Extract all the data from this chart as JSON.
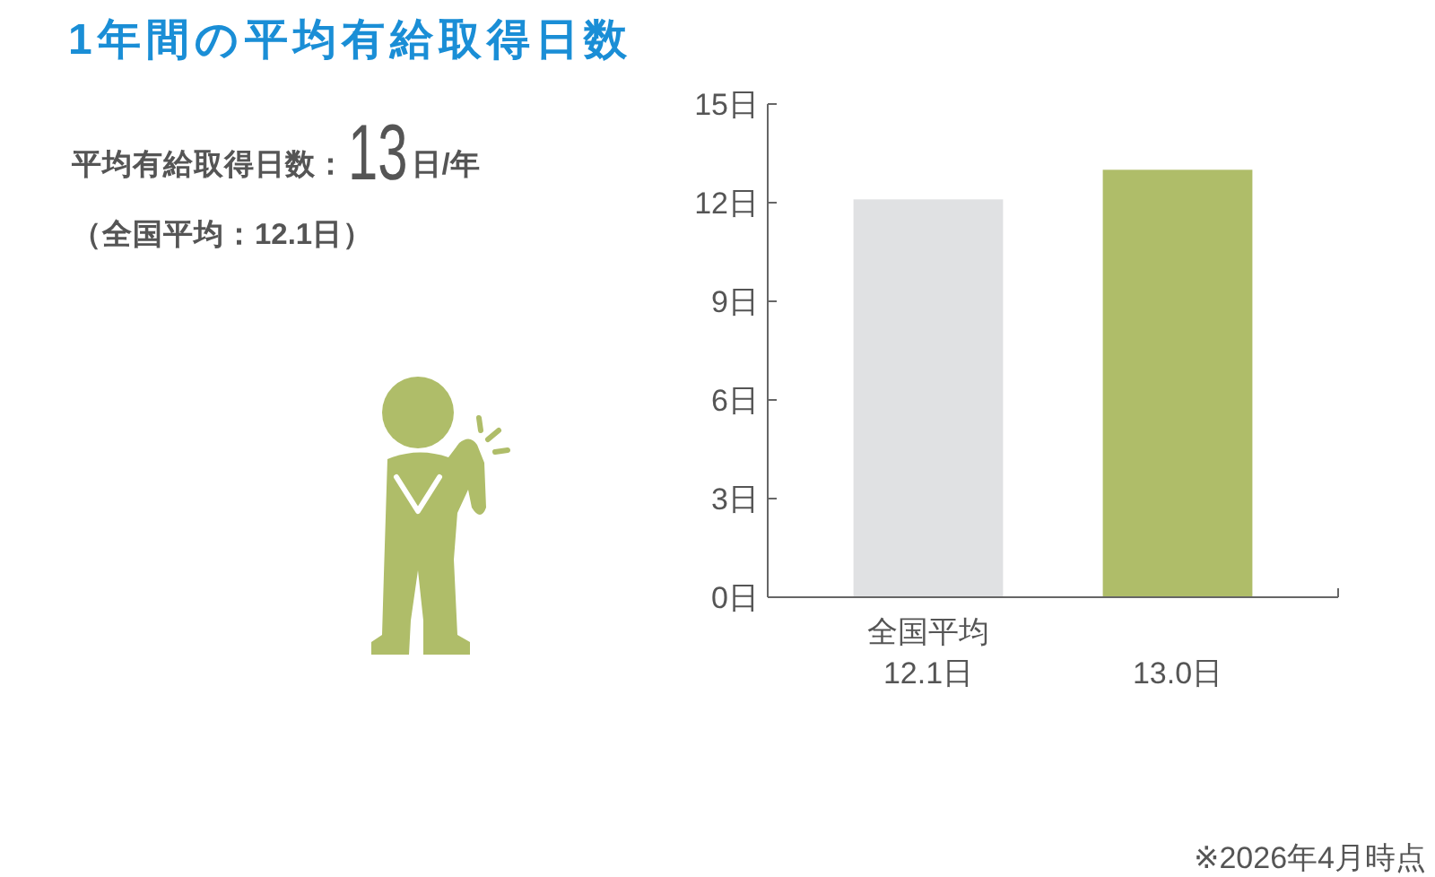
{
  "chart_data": {
    "type": "bar",
    "title": "1年間の平均有給取得日数",
    "categories": [
      "全国平均",
      null
    ],
    "values": [
      12.1,
      13.0
    ],
    "colors": [
      "#e0e1e3",
      "#afbd69"
    ],
    "value_labels": [
      "12.1日",
      "13.0日"
    ],
    "ylim": [
      0,
      15
    ],
    "yticks": [
      {
        "value": 0,
        "label": "0日"
      },
      {
        "value": 3,
        "label": "3日"
      },
      {
        "value": 6,
        "label": "6日"
      },
      {
        "value": 9,
        "label": "9日"
      },
      {
        "value": 12,
        "label": "12日"
      },
      {
        "value": 15,
        "label": "15日"
      }
    ],
    "annotations": [
      "平均有給取得日数：13日/年",
      "（全国平均：12.1日）",
      "※2026年4月時点"
    ]
  }
}
